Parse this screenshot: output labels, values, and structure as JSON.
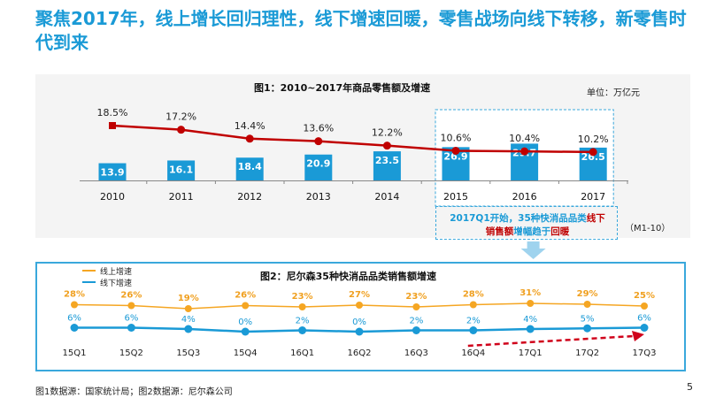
{
  "title": "聚焦2017年，线上增长回归理性，线下增速回暖，零售战场向线下转移，新零售时代到来",
  "footer": "图1数据源：国家统计局；图2数据源：尼尔森公司",
  "page_number": "5",
  "colors": {
    "accent": "#1a9ad6",
    "bar": "#1a9ad6",
    "growth_line": "#c00000",
    "online": "#f5a623",
    "offline": "#1a9ad6"
  },
  "callout": {
    "part1": "2017Q1开始，35种快消品品类",
    "part2": "线下",
    "part3": "销售额",
    "part4": "增幅趋于",
    "part5": "回暖"
  },
  "period_note": "（M1-10）",
  "arrow_icon": "down-arrow-icon",
  "chart_data": [
    {
      "type": "bar",
      "title": "图1：2010~2017年商品零售额及增速",
      "unit": "单位：万亿元",
      "categories": [
        "2010",
        "2011",
        "2012",
        "2013",
        "2014",
        "2015",
        "2016",
        "2017"
      ],
      "series": [
        {
          "values": [
            13.9,
            16.1,
            18.4,
            20.9,
            23.5,
            26.9,
            29.7,
            26.5
          ],
          "labels": [
            "13.9",
            "16.1",
            "18.4",
            "20.9",
            "23.5",
            "26.9",
            "29.7",
            "26.5"
          ]
        },
        {
          "type": "line",
          "values": [
            18.5,
            17.2,
            14.4,
            13.6,
            12.2,
            10.6,
            10.4,
            10.2
          ],
          "labels": [
            "18.5%",
            "17.2%",
            "14.4%",
            "13.6%",
            "12.2%",
            "10.6%",
            "10.4%",
            "10.2%"
          ]
        }
      ],
      "highlighted_categories": [
        "2015",
        "2016",
        "2017"
      ]
    },
    {
      "type": "line",
      "title": "图2：尼尔森35种快消品品类销售额增速",
      "categories": [
        "15Q1",
        "15Q2",
        "15Q3",
        "15Q4",
        "16Q1",
        "16Q2",
        "16Q3",
        "16Q4",
        "17Q1",
        "17Q2",
        "17Q3"
      ],
      "series": [
        {
          "name": "线上增速",
          "values": [
            28,
            26,
            19,
            26,
            23,
            27,
            23,
            28,
            31,
            29,
            25
          ],
          "labels": [
            "28%",
            "26%",
            "19%",
            "26%",
            "23%",
            "27%",
            "23%",
            "28%",
            "31%",
            "29%",
            "25%"
          ]
        },
        {
          "name": "线下增速",
          "values": [
            6,
            6,
            4,
            0,
            2,
            0,
            2,
            2,
            4,
            5,
            6
          ],
          "labels": [
            "6%",
            "6%",
            "4%",
            "0%",
            "2%",
            "0%",
            "2%",
            "2%",
            "4%",
            "5%",
            "6%"
          ]
        }
      ]
    }
  ]
}
